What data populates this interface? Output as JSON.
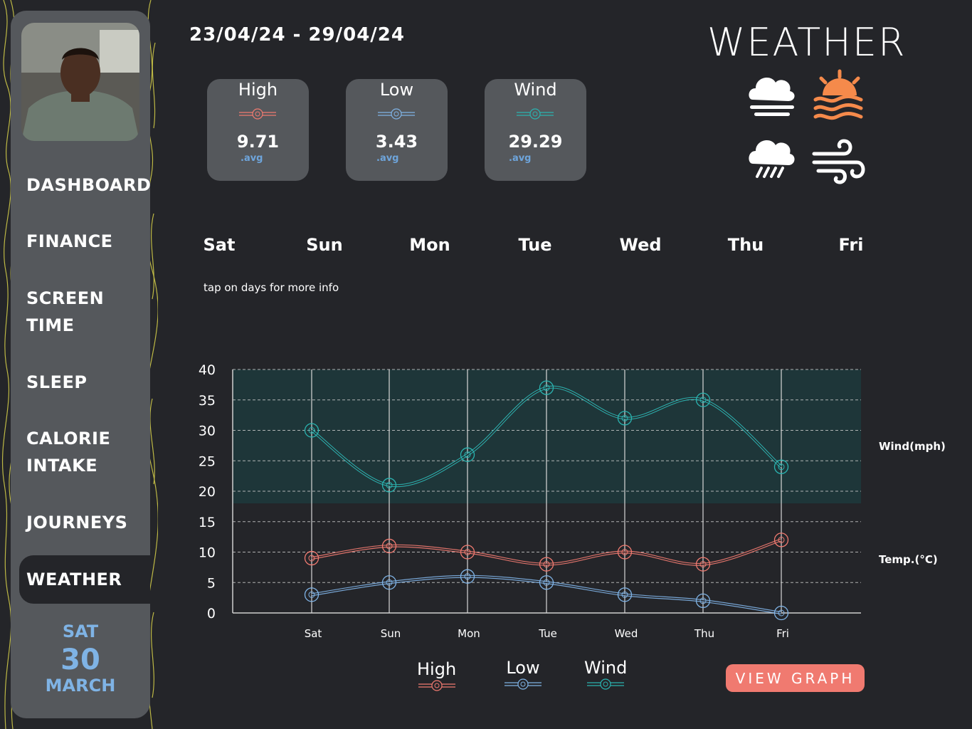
{
  "sidebar": {
    "items": [
      {
        "label": "DASHBOARD"
      },
      {
        "label": "FINANCE"
      },
      {
        "label": "SCREEN\nTIME"
      },
      {
        "label": "SLEEP"
      },
      {
        "label": "CALORIE\nINTAKE"
      },
      {
        "label": "JOURNEYS"
      },
      {
        "label": "WEATHER",
        "active": true
      }
    ],
    "date": {
      "weekday": "SAT",
      "day": "30",
      "month": "MARCH"
    }
  },
  "header": {
    "range": "23/04/24 - 29/04/24",
    "title": "WEATHER"
  },
  "stats": [
    {
      "label": "High",
      "value": "9.71",
      "sub": ".avg",
      "color": "#f07a70"
    },
    {
      "label": "Low",
      "value": "3.43",
      "sub": ".avg",
      "color": "#7fb3e5"
    },
    {
      "label": "Wind",
      "value": "29.29",
      "sub": ".avg",
      "color": "#2ab3b0"
    }
  ],
  "weather_icons": [
    "cloud-fog-icon",
    "sunset-icon",
    "cloud-rain-icon",
    "wind-icon"
  ],
  "days": [
    "Sat",
    "Sun",
    "Mon",
    "Tue",
    "Wed",
    "Thu",
    "Fri"
  ],
  "hint": "tap on days for more info",
  "axis_labels": {
    "wind": "Wind(mph)",
    "temp": "Temp.(°C)"
  },
  "legend": [
    {
      "label": "High",
      "color": "#f07a70"
    },
    {
      "label": "Low",
      "color": "#7fb3e5"
    },
    {
      "label": "Wind",
      "color": "#2ab3b0"
    }
  ],
  "view_graph": "VIEW GRAPH",
  "chart_data": {
    "type": "line",
    "categories": [
      "Sat",
      "Sun",
      "Mon",
      "Tue",
      "Wed",
      "Thu",
      "Fri"
    ],
    "ylim": [
      0,
      40
    ],
    "yticks": [
      0,
      5,
      10,
      15,
      20,
      25,
      30,
      35,
      40
    ],
    "grid": true,
    "series": [
      {
        "name": "Wind",
        "values": [
          30,
          21,
          26,
          37,
          32,
          35,
          24
        ],
        "color": "#2ab3b0"
      },
      {
        "name": "High",
        "values": [
          9,
          11,
          10,
          8,
          10,
          8,
          12
        ],
        "color": "#f07a70"
      },
      {
        "name": "Low",
        "values": [
          3,
          5,
          6,
          5,
          3,
          2,
          0
        ],
        "color": "#7fb3e5"
      }
    ],
    "highlight_band": [
      18,
      40
    ]
  }
}
